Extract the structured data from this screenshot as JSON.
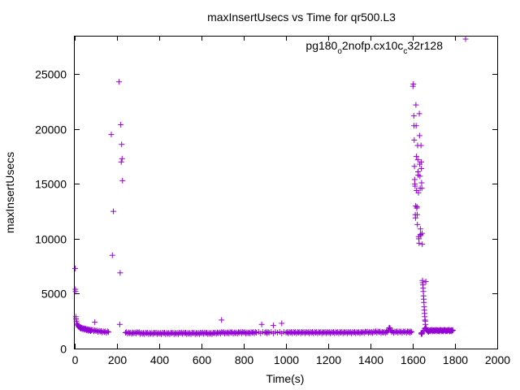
{
  "chart_data": {
    "type": "scatter",
    "title": "maxInsertUsecs vs Time for qr500.L3",
    "xlabel": "Time(s)",
    "ylabel": "maxInsertUsecs",
    "xlim": [
      0,
      2000
    ],
    "ylim": [
      0,
      28500
    ],
    "xticks": [
      0,
      200,
      400,
      600,
      800,
      1000,
      1200,
      1400,
      1600,
      1800,
      2000
    ],
    "yticks": [
      0,
      5000,
      10000,
      15000,
      20000,
      25000
    ],
    "grid": false,
    "legend_position": "top-right",
    "series": [
      {
        "name_parts": [
          "pg180",
          "o",
          "2nofp.cx10c",
          "c",
          "32r128"
        ],
        "marker": "+",
        "color": "#9400d3",
        "legend_sample": [
          1850,
          28200
        ],
        "points": [
          [
            2,
            7300
          ],
          [
            3,
            5400
          ],
          [
            4,
            5200
          ],
          [
            5,
            2900
          ],
          [
            6,
            2700
          ],
          [
            8,
            2500
          ],
          [
            10,
            2300
          ],
          [
            12,
            2200
          ],
          [
            15,
            2100
          ],
          [
            18,
            2000
          ],
          [
            20,
            1950
          ],
          [
            25,
            1900
          ],
          [
            30,
            1850
          ],
          [
            40,
            1800
          ],
          [
            50,
            1750
          ],
          [
            60,
            1700
          ],
          [
            70,
            1650
          ],
          [
            80,
            1650
          ],
          [
            95,
            2400
          ],
          [
            100,
            1600
          ],
          [
            120,
            1550
          ],
          [
            140,
            1500
          ],
          [
            160,
            1500
          ],
          [
            173,
            19500
          ],
          [
            178,
            8500
          ],
          [
            183,
            12500
          ],
          [
            210,
            24300
          ],
          [
            213,
            2200
          ],
          [
            215,
            6900
          ],
          [
            218,
            20400
          ],
          [
            220,
            17000
          ],
          [
            222,
            18600
          ],
          [
            224,
            17300
          ],
          [
            226,
            15300
          ],
          [
            240,
            1450
          ],
          [
            260,
            1400
          ],
          [
            280,
            1400
          ],
          [
            300,
            1450
          ],
          [
            320,
            1350
          ],
          [
            340,
            1400
          ],
          [
            360,
            1350
          ],
          [
            380,
            1400
          ],
          [
            400,
            1350
          ],
          [
            420,
            1400
          ],
          [
            440,
            1350
          ],
          [
            460,
            1400
          ],
          [
            480,
            1350
          ],
          [
            500,
            1400
          ],
          [
            520,
            1400
          ],
          [
            540,
            1350
          ],
          [
            560,
            1400
          ],
          [
            580,
            1350
          ],
          [
            600,
            1400
          ],
          [
            620,
            1400
          ],
          [
            640,
            1350
          ],
          [
            660,
            1400
          ],
          [
            680,
            1400
          ],
          [
            695,
            2600
          ],
          [
            700,
            1450
          ],
          [
            720,
            1400
          ],
          [
            740,
            1450
          ],
          [
            760,
            1400
          ],
          [
            780,
            1450
          ],
          [
            800,
            1450
          ],
          [
            820,
            1400
          ],
          [
            840,
            1450
          ],
          [
            860,
            1450
          ],
          [
            885,
            2200
          ],
          [
            900,
            1450
          ],
          [
            920,
            1450
          ],
          [
            940,
            2100
          ],
          [
            960,
            1450
          ],
          [
            980,
            2300
          ],
          [
            1000,
            1450
          ],
          [
            1020,
            1450
          ],
          [
            1040,
            1450
          ],
          [
            1060,
            1450
          ],
          [
            1080,
            1450
          ],
          [
            1100,
            1450
          ],
          [
            1120,
            1450
          ],
          [
            1140,
            1450
          ],
          [
            1160,
            1450
          ],
          [
            1180,
            1450
          ],
          [
            1200,
            1450
          ],
          [
            1220,
            1450
          ],
          [
            1240,
            1450
          ],
          [
            1260,
            1450
          ],
          [
            1280,
            1450
          ],
          [
            1300,
            1450
          ],
          [
            1320,
            1450
          ],
          [
            1340,
            1450
          ],
          [
            1360,
            1450
          ],
          [
            1380,
            1500
          ],
          [
            1400,
            1450
          ],
          [
            1420,
            1500
          ],
          [
            1440,
            1500
          ],
          [
            1460,
            1450
          ],
          [
            1480,
            1500
          ],
          [
            1490,
            1900
          ],
          [
            1500,
            1500
          ],
          [
            1520,
            1500
          ],
          [
            1540,
            1500
          ],
          [
            1560,
            1500
          ],
          [
            1580,
            1500
          ],
          [
            1595,
            1500
          ],
          [
            1601,
            23900
          ],
          [
            1603,
            24100
          ],
          [
            1605,
            21200
          ],
          [
            1606,
            20300
          ],
          [
            1607,
            19000
          ],
          [
            1608,
            16600
          ],
          [
            1609,
            15400
          ],
          [
            1610,
            15000
          ],
          [
            1611,
            14800
          ],
          [
            1612,
            12200
          ],
          [
            1613,
            11900
          ],
          [
            1614,
            13000
          ],
          [
            1615,
            22200
          ],
          [
            1616,
            20300
          ],
          [
            1617,
            17500
          ],
          [
            1618,
            14400
          ],
          [
            1619,
            12800
          ],
          [
            1620,
            12900
          ],
          [
            1621,
            12200
          ],
          [
            1622,
            11300
          ],
          [
            1623,
            18500
          ],
          [
            1624,
            17200
          ],
          [
            1625,
            16100
          ],
          [
            1626,
            15800
          ],
          [
            1627,
            14200
          ],
          [
            1628,
            10200
          ],
          [
            1629,
            10000
          ],
          [
            1630,
            9600
          ],
          [
            1631,
            21400
          ],
          [
            1632,
            19400
          ],
          [
            1633,
            16800
          ],
          [
            1634,
            15700
          ],
          [
            1635,
            14600
          ],
          [
            1636,
            10900
          ],
          [
            1637,
            10400
          ],
          [
            1638,
            10300
          ],
          [
            1639,
            18500
          ],
          [
            1640,
            17000
          ],
          [
            1641,
            16400
          ],
          [
            1642,
            15100
          ],
          [
            1643,
            14600
          ],
          [
            1644,
            10500
          ],
          [
            1645,
            9500
          ],
          [
            1646,
            6200
          ],
          [
            1647,
            6000
          ],
          [
            1648,
            5800
          ],
          [
            1649,
            5500
          ],
          [
            1650,
            5200
          ],
          [
            1651,
            4800
          ],
          [
            1652,
            4500
          ],
          [
            1653,
            4200
          ],
          [
            1654,
            3800
          ],
          [
            1655,
            3500
          ],
          [
            1656,
            3200
          ],
          [
            1657,
            2900
          ],
          [
            1658,
            2600
          ],
          [
            1659,
            2500
          ],
          [
            1660,
            2200
          ],
          [
            1661,
            1900
          ],
          [
            1662,
            6100
          ],
          [
            1640,
            1350
          ],
          [
            1645,
            1400
          ],
          [
            1670,
            1550
          ],
          [
            1680,
            1600
          ],
          [
            1690,
            1650
          ],
          [
            1700,
            1600
          ],
          [
            1710,
            1650
          ],
          [
            1720,
            1600
          ],
          [
            1730,
            1650
          ],
          [
            1740,
            1600
          ],
          [
            1750,
            1650
          ],
          [
            1760,
            1600
          ],
          [
            1770,
            1650
          ],
          [
            1780,
            1600
          ],
          [
            1790,
            1650
          ]
        ]
      }
    ]
  }
}
